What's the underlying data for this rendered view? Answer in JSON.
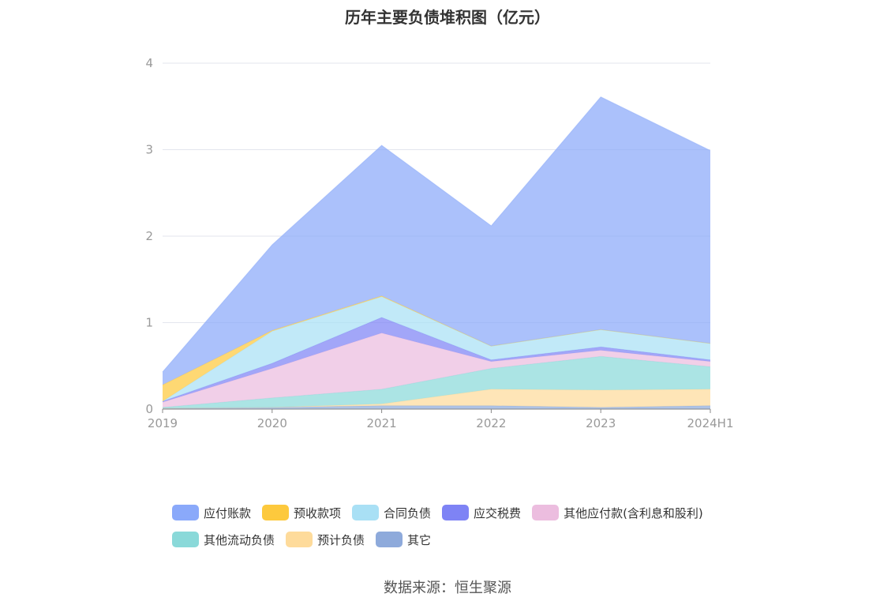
{
  "chart_data": {
    "type": "area",
    "stacked": true,
    "title": "历年主要负债堆积图（亿元）",
    "x": [
      "2019",
      "2020",
      "2021",
      "2022",
      "2023",
      "2024H1"
    ],
    "ylim": [
      0,
      4
    ],
    "yticks": [
      "0",
      "1",
      "2",
      "3",
      "4"
    ],
    "grid": true,
    "legend_position": "bottom",
    "series": [
      {
        "name": "其它",
        "color": "#8eaadb",
        "values": [
          0.01,
          0.02,
          0.04,
          0.04,
          0.02,
          0.04
        ]
      },
      {
        "name": "预计负债",
        "color": "#fedb9b",
        "values": [
          0.0,
          0.0,
          0.02,
          0.19,
          0.2,
          0.19
        ]
      },
      {
        "name": "其他流动负债",
        "color": "#8ad9d9",
        "values": [
          0.01,
          0.11,
          0.17,
          0.24,
          0.39,
          0.26
        ]
      },
      {
        "name": "其他应付款(含利息和股利)",
        "color": "#ecbddf",
        "values": [
          0.06,
          0.34,
          0.65,
          0.08,
          0.07,
          0.06
        ]
      },
      {
        "name": "应交税费",
        "color": "#7e83f5",
        "values": [
          0.01,
          0.06,
          0.18,
          0.02,
          0.04,
          0.02
        ]
      },
      {
        "name": "合同负债",
        "color": "#a9e0f5",
        "values": [
          0.0,
          0.37,
          0.24,
          0.16,
          0.2,
          0.19
        ]
      },
      {
        "name": "预收款项",
        "color": "#fdc93d",
        "values": [
          0.19,
          0.01,
          0.01,
          0.0,
          0.0,
          0.0
        ]
      },
      {
        "name": "应付账款",
        "color": "#8aa9fa",
        "values": [
          0.15,
          0.99,
          1.74,
          1.39,
          2.69,
          2.23
        ]
      }
    ]
  },
  "legend_rows": [
    [
      {
        "name": "应付账款",
        "color": "#8aa9fa"
      },
      {
        "name": "预收款项",
        "color": "#fdc93d"
      },
      {
        "name": "合同负债",
        "color": "#a9e0f5"
      },
      {
        "name": "应交税费",
        "color": "#7e83f5"
      },
      {
        "name": "其他应付款(含利息和股利)",
        "color": "#ecbddf"
      }
    ],
    [
      {
        "name": "其他流动负债",
        "color": "#8ad9d9"
      },
      {
        "name": "预计负债",
        "color": "#fedb9b"
      },
      {
        "name": "其它",
        "color": "#8eaadb"
      }
    ]
  ],
  "source": "数据来源：恒生聚源"
}
